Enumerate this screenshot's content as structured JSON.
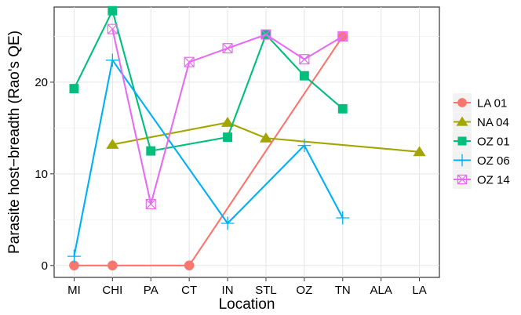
{
  "chart_data": {
    "type": "line",
    "xlabel": "Location",
    "ylabel": "Parasite host−breadth (Rao's QE)",
    "categories": [
      "MI",
      "CHI",
      "PA",
      "CT",
      "IN",
      "STL",
      "OZ",
      "TN",
      "ALA",
      "LA"
    ],
    "ylim": [
      -1.3,
      28.2
    ],
    "yticks": [
      0,
      10,
      20
    ],
    "grid": true,
    "legend_position": "right",
    "series": [
      {
        "name": "LA 01",
        "color": "#f8766d",
        "marker": "circle",
        "values": [
          0,
          0,
          null,
          0,
          null,
          null,
          null,
          25.0,
          null,
          null
        ]
      },
      {
        "name": "NA 04",
        "color": "#a3a500",
        "marker": "triangle",
        "values": [
          null,
          13.2,
          null,
          null,
          15.6,
          13.9,
          null,
          null,
          null,
          12.4
        ]
      },
      {
        "name": "OZ 01",
        "color": "#00bf7d",
        "marker": "square",
        "values": [
          19.3,
          27.8,
          12.5,
          null,
          14.0,
          25.2,
          20.7,
          17.1,
          null,
          null
        ]
      },
      {
        "name": "OZ 06",
        "color": "#00b0f6",
        "marker": "plus",
        "values": [
          1.0,
          22.4,
          null,
          null,
          4.6,
          null,
          13.1,
          5.2,
          null,
          null
        ]
      },
      {
        "name": "OZ 14",
        "color": "#e76bf3",
        "marker": "boxx",
        "values": [
          null,
          25.8,
          6.7,
          22.2,
          23.7,
          25.2,
          22.5,
          25.0,
          null,
          null
        ]
      }
    ]
  }
}
